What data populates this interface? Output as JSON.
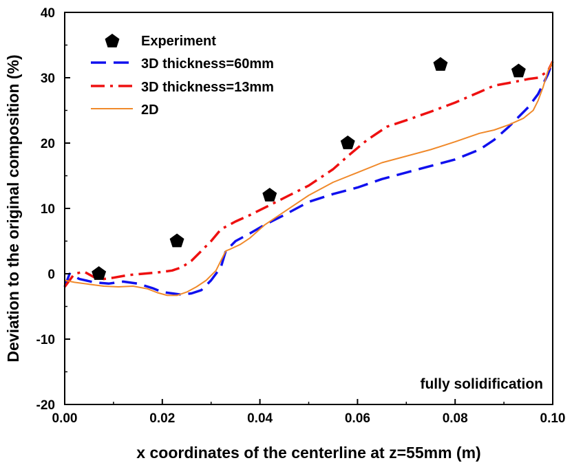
{
  "chart_data": {
    "type": "line",
    "title": "",
    "xlabel": "x coordinates of the centerline at z=55mm (m)",
    "ylabel": "Deviation to the original composition (%)",
    "xlim": [
      0.0,
      0.1
    ],
    "ylim": [
      -20,
      40
    ],
    "x_ticks": [
      0.0,
      0.02,
      0.04,
      0.06,
      0.08,
      0.1
    ],
    "x_tick_labels": [
      "0.00",
      "0.02",
      "0.04",
      "0.06",
      "0.08",
      "0.10"
    ],
    "y_ticks": [
      -20,
      -10,
      0,
      10,
      20,
      30,
      40
    ],
    "y_tick_labels": [
      "-20",
      "-10",
      "0",
      "10",
      "20",
      "30",
      "40"
    ],
    "grid": false,
    "legend_position": "top-left",
    "annotation": "fully solidification",
    "series": [
      {
        "name": "Experiment",
        "kind": "scatter",
        "marker": "pentagon",
        "color": "#000000",
        "x": [
          0.007,
          0.023,
          0.042,
          0.058,
          0.077,
          0.093
        ],
        "y": [
          0.0,
          5.0,
          12.0,
          20.0,
          32.0,
          31.0
        ]
      },
      {
        "name": "3D thickness=60mm",
        "kind": "line",
        "dash": "dashed",
        "color": "#1010ee",
        "x": [
          0.0,
          0.001,
          0.003,
          0.006,
          0.009,
          0.012,
          0.015,
          0.018,
          0.02,
          0.022,
          0.024,
          0.026,
          0.028,
          0.03,
          0.032,
          0.033,
          0.035,
          0.038,
          0.041,
          0.045,
          0.05,
          0.055,
          0.06,
          0.065,
          0.07,
          0.075,
          0.08,
          0.085,
          0.088,
          0.091,
          0.093,
          0.095,
          0.097,
          0.099,
          0.1
        ],
        "y": [
          -2.0,
          0.0,
          -0.8,
          -1.3,
          -1.5,
          -1.2,
          -1.5,
          -2.2,
          -2.8,
          -3.0,
          -3.2,
          -3.0,
          -2.5,
          -1.0,
          1.0,
          3.5,
          5.0,
          6.2,
          7.5,
          9.0,
          11.0,
          12.2,
          13.2,
          14.5,
          15.5,
          16.5,
          17.5,
          19.0,
          20.5,
          22.5,
          24.0,
          25.5,
          27.5,
          30.5,
          32.5
        ]
      },
      {
        "name": "3D thickness=13mm",
        "kind": "line",
        "dash": "dash-dot",
        "color": "#ee1010",
        "x": [
          0.0,
          0.001,
          0.002,
          0.004,
          0.006,
          0.008,
          0.01,
          0.013,
          0.016,
          0.019,
          0.022,
          0.024,
          0.026,
          0.028,
          0.03,
          0.032,
          0.035,
          0.038,
          0.042,
          0.046,
          0.05,
          0.055,
          0.058,
          0.062,
          0.066,
          0.07,
          0.075,
          0.08,
          0.085,
          0.088,
          0.091,
          0.093,
          0.095,
          0.097,
          0.099,
          0.1
        ],
        "y": [
          -2.0,
          -1.0,
          0.0,
          0.3,
          -0.5,
          -0.8,
          -0.6,
          -0.2,
          0.0,
          0.2,
          0.5,
          1.0,
          2.0,
          3.5,
          5.0,
          6.8,
          8.0,
          9.0,
          10.5,
          12.0,
          13.5,
          16.0,
          18.0,
          20.5,
          22.5,
          23.5,
          24.8,
          26.2,
          27.8,
          28.8,
          29.2,
          29.5,
          29.8,
          30.0,
          31.0,
          32.5
        ]
      },
      {
        "name": "2D",
        "kind": "line",
        "dash": "solid",
        "color": "#f0892a",
        "x": [
          0.0,
          0.002,
          0.005,
          0.008,
          0.011,
          0.014,
          0.017,
          0.019,
          0.021,
          0.023,
          0.025,
          0.027,
          0.029,
          0.031,
          0.032,
          0.033,
          0.034,
          0.036,
          0.038,
          0.041,
          0.045,
          0.05,
          0.055,
          0.06,
          0.065,
          0.07,
          0.075,
          0.08,
          0.085,
          0.088,
          0.091,
          0.094,
          0.096,
          0.097,
          0.098,
          0.099,
          0.1
        ],
        "y": [
          -1.0,
          -1.3,
          -1.6,
          -1.9,
          -2.0,
          -1.9,
          -2.3,
          -2.9,
          -3.3,
          -3.3,
          -2.8,
          -2.0,
          -1.0,
          0.5,
          2.0,
          3.5,
          3.8,
          4.5,
          5.5,
          7.5,
          9.5,
          12.0,
          14.0,
          15.5,
          17.0,
          18.0,
          19.0,
          20.2,
          21.5,
          22.0,
          22.8,
          23.8,
          25.0,
          26.5,
          28.5,
          31.0,
          32.5
        ]
      }
    ]
  }
}
